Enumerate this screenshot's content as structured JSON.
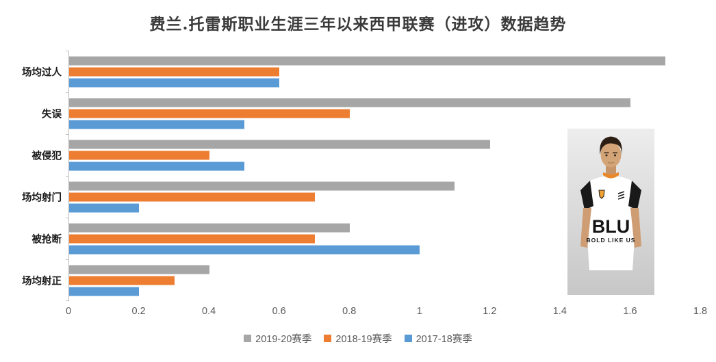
{
  "chart": {
    "title": "费兰.托雷斯职业生涯三年以来西甲联赛（进攻）数据趋势"
  },
  "chart_data": {
    "type": "bar",
    "orientation": "horizontal",
    "title": "费兰.托雷斯职业生涯三年以来西甲联赛（进攻）数据趋势",
    "categories": [
      "场均过人",
      "失误",
      "被侵犯",
      "场均射门",
      "被抢断",
      "场均射正"
    ],
    "series": [
      {
        "name": "2019-20赛季",
        "color": "#a6a6a6",
        "values": [
          1.7,
          1.6,
          1.2,
          1.1,
          0.8,
          0.4
        ]
      },
      {
        "name": "2018-19赛季",
        "color": "#ed7d31",
        "values": [
          0.6,
          0.8,
          0.4,
          0.7,
          0.7,
          0.3
        ]
      },
      {
        "name": "2017-18赛季",
        "color": "#5b9bd5",
        "values": [
          0.6,
          0.5,
          0.5,
          0.2,
          1.0,
          0.2
        ]
      }
    ],
    "xlim": [
      0,
      1.8
    ],
    "xticks": [
      0,
      0.2,
      0.4,
      0.6,
      0.8,
      1,
      1.2,
      1.4,
      1.6,
      1.8
    ],
    "xtick_labels": [
      "0",
      "0.2",
      "0.4",
      "0.6",
      "0.8",
      "1",
      "1.2",
      "1.4",
      "1.6",
      "1.8"
    ],
    "legend_position": "bottom",
    "grid": false
  },
  "photo": {
    "jersey_line1": "BLU",
    "jersey_line2": "BOLD LIKE US"
  }
}
